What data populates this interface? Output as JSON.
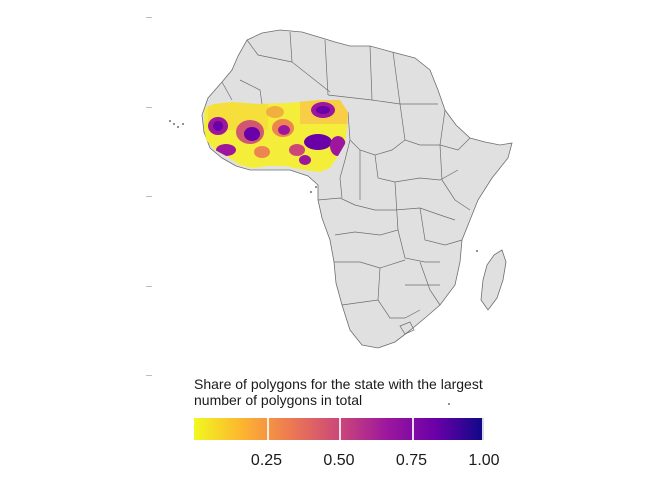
{
  "legend": {
    "title_line1": "Share of polygons for the state with the largest",
    "title_line2": "number of polygons in total",
    "colors": [
      "#f0f921",
      "#fdb42f",
      "#ed7953",
      "#cc4778",
      "#9c179e",
      "#6a00a8",
      "#0d0887"
    ],
    "range": [
      0,
      1
    ],
    "ticks": [
      {
        "value": 0.25,
        "label": "0.25"
      },
      {
        "value": 0.5,
        "label": "0.50"
      },
      {
        "value": 0.75,
        "label": "0.75"
      },
      {
        "value": 1.0,
        "label": "1.00"
      }
    ]
  },
  "map": {
    "land_color": "#e0e0e0",
    "border_color": "#6e6e6e",
    "region": "Africa"
  }
}
